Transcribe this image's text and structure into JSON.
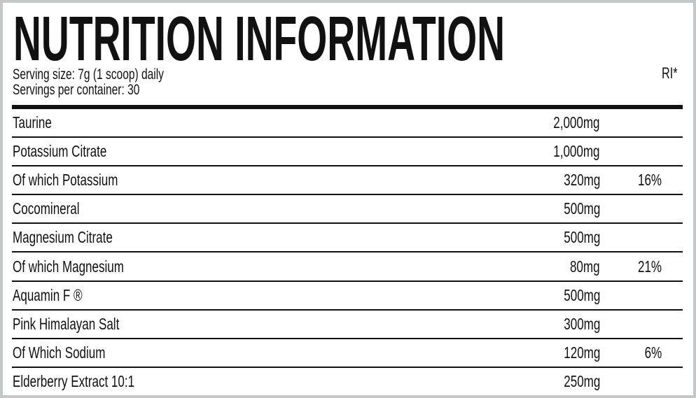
{
  "title": "NUTRITION INFORMATION",
  "serving_size": "Serving size: 7g (1 scoop) daily",
  "servings_per_container": "Servings per container: 30",
  "ri_header": "RI*",
  "rows": [
    {
      "name": "Taurine",
      "amount": "2,000mg",
      "ri": ""
    },
    {
      "name": "Potassium Citrate",
      "amount": "1,000mg",
      "ri": ""
    },
    {
      "name": "Of which Potassium",
      "amount": "320mg",
      "ri": "16%"
    },
    {
      "name": "Cocomineral",
      "amount": "500mg",
      "ri": ""
    },
    {
      "name": "Magnesium Citrate",
      "amount": "500mg",
      "ri": ""
    },
    {
      "name": "Of which Magnesium",
      "amount": "80mg",
      "ri": "21%"
    },
    {
      "name": "Aquamin F ®",
      "amount": "500mg",
      "ri": ""
    },
    {
      "name": "Pink Himalayan Salt",
      "amount": "300mg",
      "ri": ""
    },
    {
      "name": "Of Which Sodium",
      "amount": "120mg",
      "ri": "6%"
    },
    {
      "name": "Elderberry Extract 10:1",
      "amount": "250mg",
      "ri": ""
    }
  ]
}
